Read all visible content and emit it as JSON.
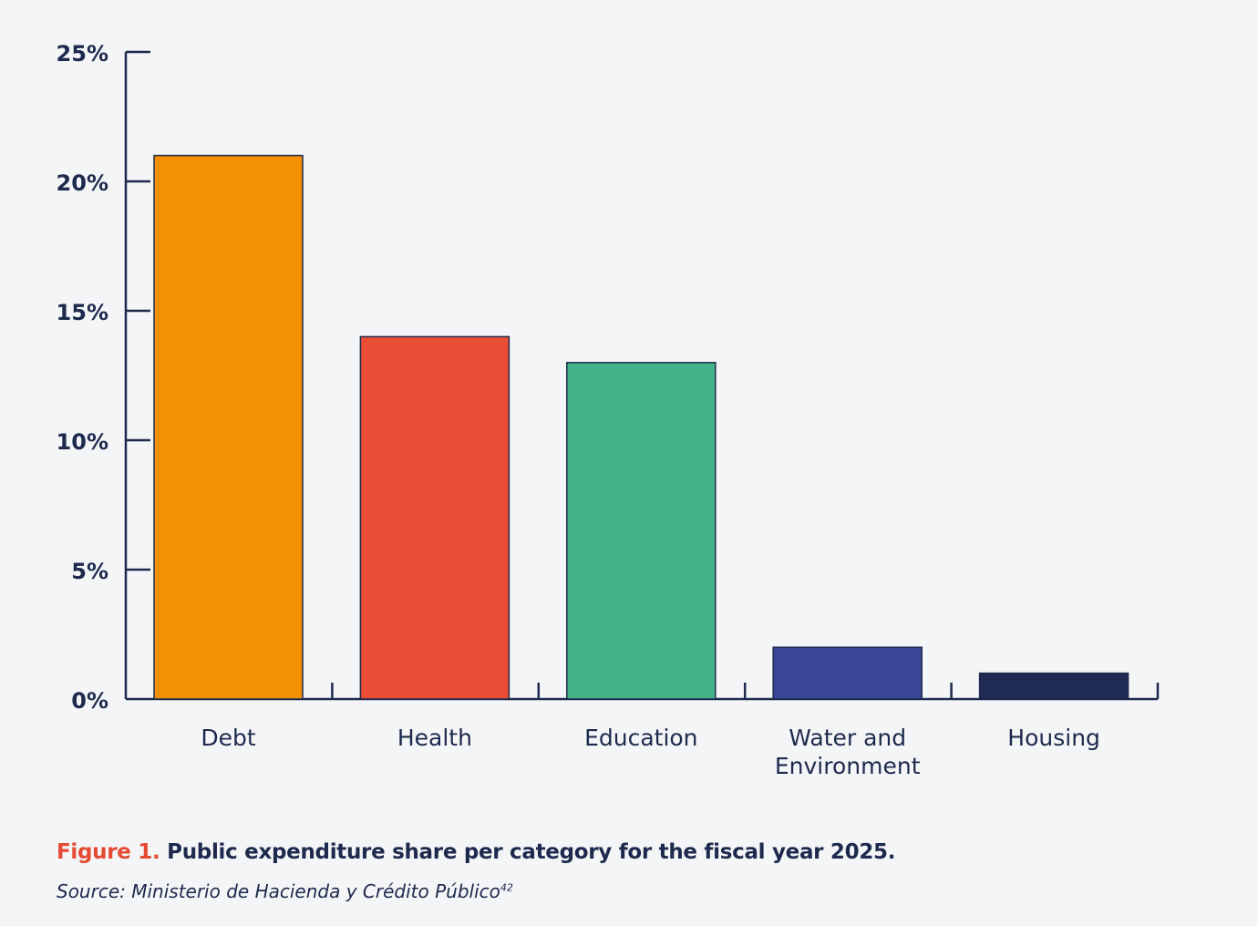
{
  "chart_data": {
    "type": "bar",
    "categories": [
      "Debt",
      "Health",
      "Education",
      "Water and Environment",
      "Housing"
    ],
    "category_lines": [
      [
        "Debt"
      ],
      [
        "Health"
      ],
      [
        "Education"
      ],
      [
        "Water and",
        "Environment"
      ],
      [
        "Housing"
      ]
    ],
    "values": [
      21,
      14,
      13,
      2,
      1
    ],
    "colors": [
      "#f39004",
      "#e94d35",
      "#44b388",
      "#3a4597",
      "#1f2b52"
    ],
    "ylim": [
      0,
      25
    ],
    "yticks": [
      0,
      5,
      10,
      15,
      20,
      25
    ],
    "ytick_labels": [
      "0%",
      "5%",
      "10%",
      "15%",
      "20%",
      "25%"
    ],
    "grid": false,
    "xlabel": "",
    "ylabel": ""
  },
  "caption": {
    "figure_label": "Figure 1.",
    "text": "Public expenditure share per category for the fiscal year 2025."
  },
  "source": {
    "text": "Source: Ministerio de Hacienda y Crédito Público",
    "footnote": "42"
  },
  "colors": {
    "background": "#f4f5f7",
    "axis": "#1d2a4d",
    "accent": "#e54a33"
  }
}
